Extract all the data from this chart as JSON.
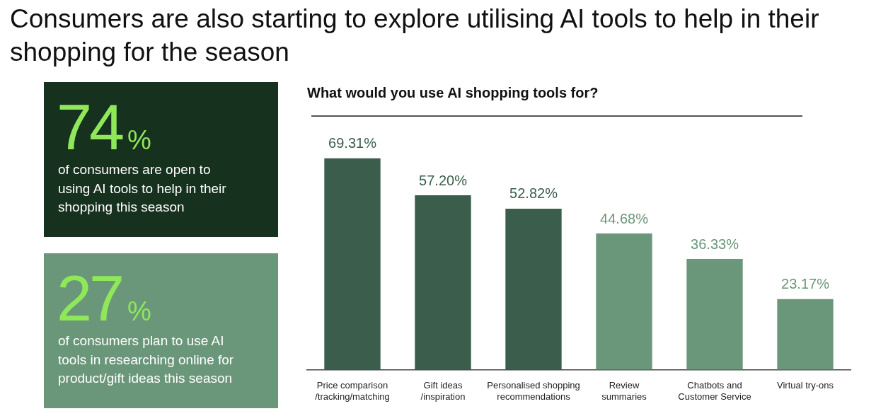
{
  "chart_data": [
    {
      "type": "other",
      "title": "Consumers are also starting to explore utilising AI tools to help in their shopping for the season",
      "annotations": [
        "74%",
        "of consumers are open to using AI tools to help in their shopping this season",
        "27%",
        "of consumers plan to use AI tools in researching online for product/gift ideas this season"
      ]
    },
    {
      "type": "bar",
      "title": "What would you use AI shopping tools for?",
      "categories": [
        "Price comparison /tracking/matching",
        "Gift ideas /inspiration",
        "Personalised shopping recommendations",
        "Review summaries",
        "Chatbots and Customer Service",
        "Virtual try-ons"
      ],
      "values": [
        69.31,
        57.2,
        52.82,
        44.68,
        36.33,
        23.17
      ],
      "colors": [
        "#3a5e4b",
        "#3a5e4b",
        "#3a5e4b",
        "#6a977a",
        "#6a977a",
        "#6a977a"
      ],
      "value_labels": [
        "69.31%",
        "57.20%",
        "52.82%",
        "44.68%",
        "36.33%",
        "23.17%"
      ],
      "tick_labels": "x"
    }
  ]
}
